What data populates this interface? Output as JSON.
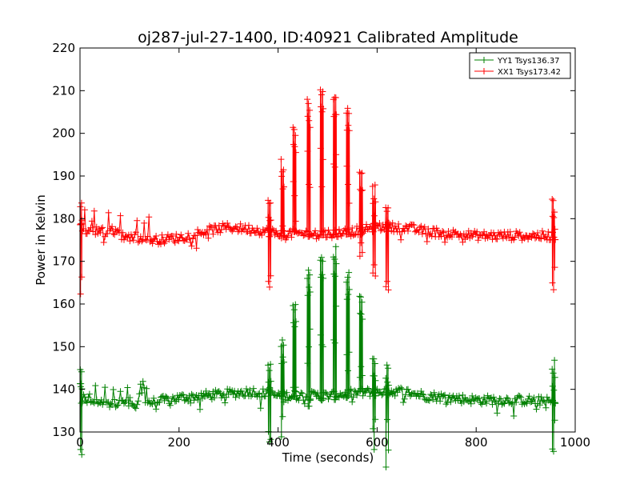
{
  "chart_data": {
    "type": "line",
    "title": "oj287-jul-27-1400, ID:40921 Calibrated Amplitude",
    "xlabel": "Time (seconds)",
    "ylabel": "Power in Kelvin",
    "xlim": [
      0,
      1000
    ],
    "ylim": [
      130,
      220
    ],
    "xticks": [
      0,
      200,
      400,
      600,
      800,
      1000
    ],
    "yticks": [
      130,
      140,
      150,
      160,
      170,
      180,
      190,
      200,
      210,
      220
    ],
    "grid": false,
    "legend_position": "top-right",
    "marker": "plus",
    "series": [
      {
        "name": "YY1 Tsys136.37",
        "color": "#008000",
        "baseline": [
          [
            0,
            137.5
          ],
          [
            50,
            137
          ],
          [
            100,
            136.5
          ],
          [
            150,
            137
          ],
          [
            200,
            138
          ],
          [
            250,
            138.5
          ],
          [
            300,
            139
          ],
          [
            350,
            139.5
          ],
          [
            400,
            138.5
          ],
          [
            450,
            138.5
          ],
          [
            500,
            138.5
          ],
          [
            550,
            139
          ],
          [
            600,
            139.5
          ],
          [
            650,
            139.5
          ],
          [
            700,
            138.5
          ],
          [
            750,
            138
          ],
          [
            800,
            137.5
          ],
          [
            850,
            137.5
          ],
          [
            900,
            137.5
          ],
          [
            960,
            137
          ]
        ],
        "spikes": [
          [
            0,
            147
          ],
          [
            382,
            146
          ],
          [
            407,
            152
          ],
          [
            433,
            161
          ],
          [
            460,
            168
          ],
          [
            487,
            172
          ],
          [
            513,
            174
          ],
          [
            540,
            168
          ],
          [
            567,
            163
          ],
          [
            593,
            149
          ],
          [
            618,
            146
          ],
          [
            955,
            147
          ]
        ]
      },
      {
        "name": "XX1 Tsys173.42",
        "color": "#ff0000",
        "baseline": [
          [
            0,
            177
          ],
          [
            50,
            177.5
          ],
          [
            100,
            175.5
          ],
          [
            150,
            175
          ],
          [
            200,
            175.5
          ],
          [
            250,
            177
          ],
          [
            300,
            178
          ],
          [
            350,
            177.5
          ],
          [
            400,
            176.5
          ],
          [
            450,
            176.5
          ],
          [
            500,
            176.5
          ],
          [
            550,
            177
          ],
          [
            600,
            178
          ],
          [
            650,
            178
          ],
          [
            700,
            177
          ],
          [
            750,
            176.5
          ],
          [
            800,
            176
          ],
          [
            850,
            176
          ],
          [
            900,
            176
          ],
          [
            960,
            176
          ]
        ],
        "spikes": [
          [
            0,
            186
          ],
          [
            382,
            186
          ],
          [
            407,
            194
          ],
          [
            433,
            203
          ],
          [
            460,
            208
          ],
          [
            487,
            211
          ],
          [
            513,
            211
          ],
          [
            540,
            206
          ],
          [
            567,
            194
          ],
          [
            593,
            188
          ],
          [
            618,
            183
          ],
          [
            955,
            185
          ]
        ]
      }
    ]
  }
}
